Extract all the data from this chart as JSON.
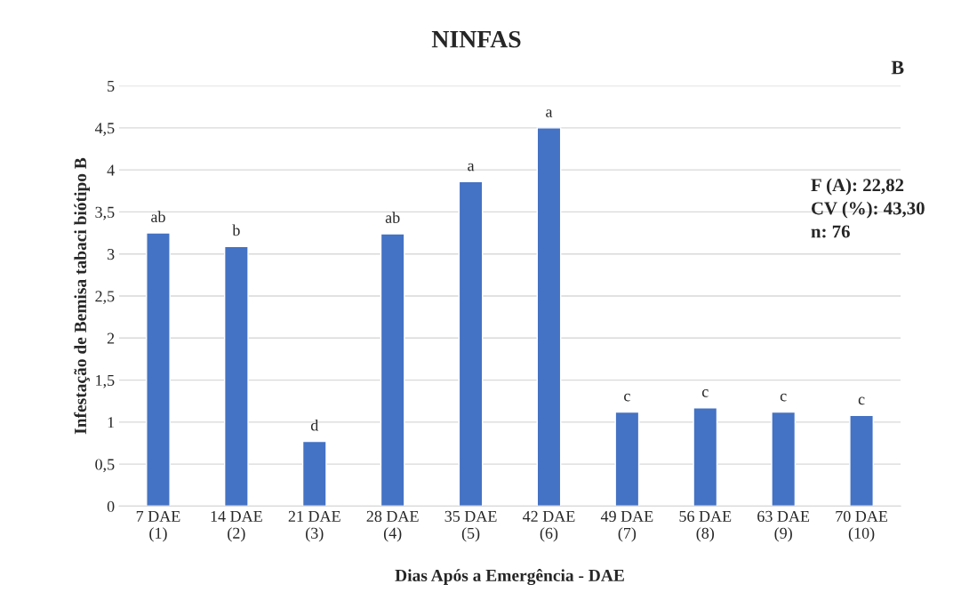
{
  "chart_data": {
    "type": "bar",
    "title": "NINFAS",
    "xlabel": "Dias Após a Emergência - DAE",
    "ylabel": "Infestação de Bemisa tabaci biótipo B",
    "categories": [
      "7 DAE\n(1)",
      "14 DAE\n(2)",
      "21 DAE\n(3)",
      "28 DAE\n(4)",
      "35 DAE\n(5)",
      "42 DAE\n(6)",
      "49 DAE\n(7)",
      "56 DAE\n(8)",
      "63 DAE\n(9)",
      "70 DAE\n(10)"
    ],
    "values": [
      3.25,
      3.09,
      0.77,
      3.24,
      3.86,
      4.5,
      1.12,
      1.17,
      1.12,
      1.08
    ],
    "value_labels": [
      "ab",
      "b",
      "d",
      "ab",
      "a",
      "a",
      "c",
      "c",
      "c",
      "c"
    ],
    "color": "#4472c4",
    "ylim": [
      0,
      5
    ],
    "yticks": [
      0,
      {
        "value": 0.5,
        "label": "0,5"
      },
      1,
      {
        "value": 1.5,
        "label": "1,5"
      },
      2,
      {
        "value": 2.5,
        "label": "2,5"
      },
      3,
      {
        "value": 3.5,
        "label": "3,5"
      },
      4,
      {
        "value": 4.5,
        "label": "4,5"
      },
      5
    ],
    "grid": "y",
    "annotations": [
      "B",
      "F (A): 22,82\nCV (%): 43,30\nn: 76"
    ]
  }
}
